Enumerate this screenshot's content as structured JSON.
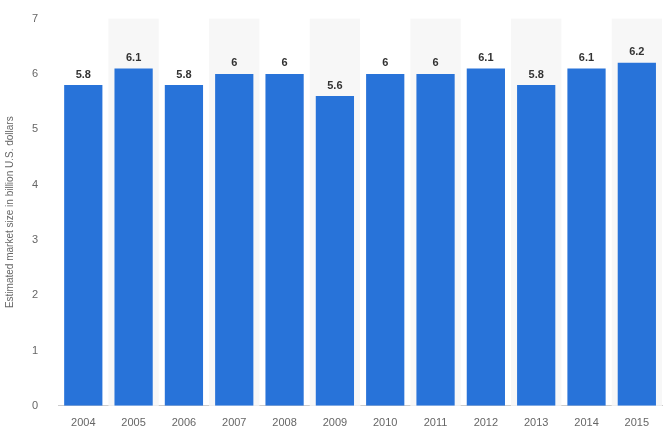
{
  "chart_data": {
    "type": "bar",
    "y_label": "Estimated market size in billion U.S. dollars",
    "categories": [
      "2004",
      "2005",
      "2006",
      "2007",
      "2008",
      "2009",
      "2010",
      "2011",
      "2012",
      "2013",
      "2014",
      "2015"
    ],
    "values": [
      5.8,
      6.1,
      5.8,
      6,
      6,
      5.6,
      6,
      6,
      6.1,
      5.8,
      6.1,
      6.2
    ],
    "color": "#2873d9",
    "ylim": [
      0,
      7
    ],
    "yticks": [
      0,
      1,
      2,
      3,
      4,
      5,
      6,
      7
    ],
    "grid": false,
    "data_labels": true
  }
}
